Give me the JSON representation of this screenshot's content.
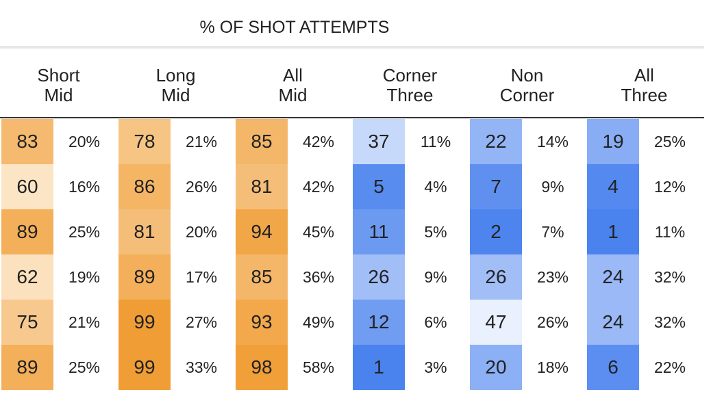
{
  "title": "% OF SHOT ATTEMPTS",
  "colors": {
    "orange_scale": [
      "#fdeed8",
      "#f09d35"
    ],
    "blue_scale": [
      "#f4f8ff",
      "#4a82ee"
    ]
  },
  "columns": [
    {
      "line1": "Short",
      "line2": "Mid",
      "scale": "orange",
      "ranks": [
        83,
        60,
        89,
        62,
        75,
        89
      ],
      "pcts": [
        "20%",
        "16%",
        "25%",
        "19%",
        "21%",
        "25%"
      ]
    },
    {
      "line1": "Long",
      "line2": "Mid",
      "scale": "orange",
      "ranks": [
        78,
        86,
        81,
        89,
        99,
        99
      ],
      "pcts": [
        "21%",
        "26%",
        "20%",
        "17%",
        "27%",
        "33%"
      ]
    },
    {
      "line1": "All",
      "line2": "Mid",
      "scale": "orange",
      "ranks": [
        85,
        81,
        94,
        85,
        93,
        98
      ],
      "pcts": [
        "42%",
        "42%",
        "45%",
        "36%",
        "49%",
        "58%"
      ]
    },
    {
      "line1": "Corner",
      "line2": "Three",
      "scale": "blue",
      "ranks": [
        37,
        5,
        11,
        26,
        12,
        1
      ],
      "pcts": [
        "11%",
        "4%",
        "5%",
        "9%",
        "6%",
        "3%"
      ]
    },
    {
      "line1": "Non",
      "line2": "Corner",
      "scale": "blue",
      "ranks": [
        22,
        7,
        2,
        26,
        47,
        20
      ],
      "pcts": [
        "14%",
        "9%",
        "7%",
        "23%",
        "26%",
        "18%"
      ]
    },
    {
      "line1": "All",
      "line2": "Three",
      "scale": "blue",
      "ranks": [
        19,
        4,
        1,
        24,
        24,
        6
      ],
      "pcts": [
        "25%",
        "12%",
        "11%",
        "32%",
        "32%",
        "22%"
      ]
    }
  ]
}
